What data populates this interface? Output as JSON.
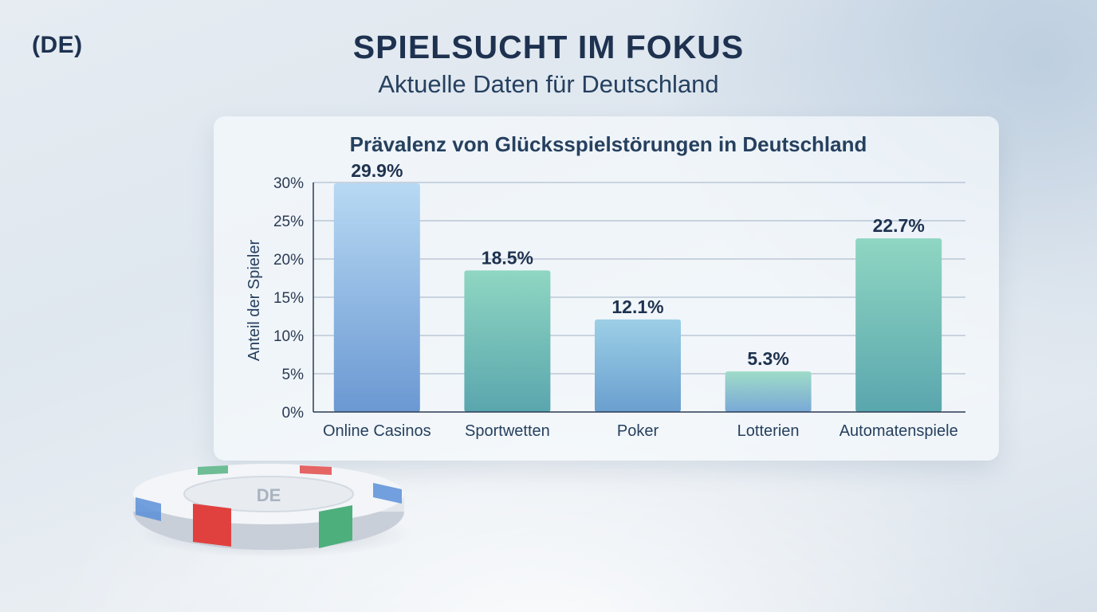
{
  "header": {
    "country_tag": "(DE)",
    "title": "SPIELSUCHT IM FOKUS",
    "subtitle": "Aktuelle Daten für Deutschland"
  },
  "chip": {
    "label": "DE"
  },
  "colors": {
    "title": "#1e3250",
    "grid": "#9fb0c4",
    "axis": "#2a3a52",
    "bar_blue_top": "#b7d9f3",
    "bar_blue_bottom": "#6b98d2",
    "bar_teal_top": "#8fd6c2",
    "bar_teal_bottom": "#5aa6ae",
    "chip_red": "#e0413f",
    "chip_green": "#4caf7c",
    "chip_blue": "#5b8fd8"
  },
  "chart_data": {
    "type": "bar",
    "title": "Prävalenz von Glücksspielstörungen in Deutschland",
    "xlabel": "",
    "ylabel": "Anteil der Spieler",
    "ylim": [
      0,
      30
    ],
    "yticks": [
      0,
      5,
      10,
      15,
      20,
      25,
      30
    ],
    "ytick_labels": [
      "0%",
      "5%",
      "10%",
      "15%",
      "20%",
      "25%",
      "30%"
    ],
    "grid": true,
    "categories": [
      "Online Casinos",
      "Sportwetten",
      "Poker",
      "Lotterien",
      "Automatenspiele"
    ],
    "values": [
      29.9,
      18.5,
      12.1,
      5.3,
      22.7
    ],
    "value_labels": [
      "29.9%",
      "18.5%",
      "12.1%",
      "5.3%",
      "22.7%"
    ]
  }
}
